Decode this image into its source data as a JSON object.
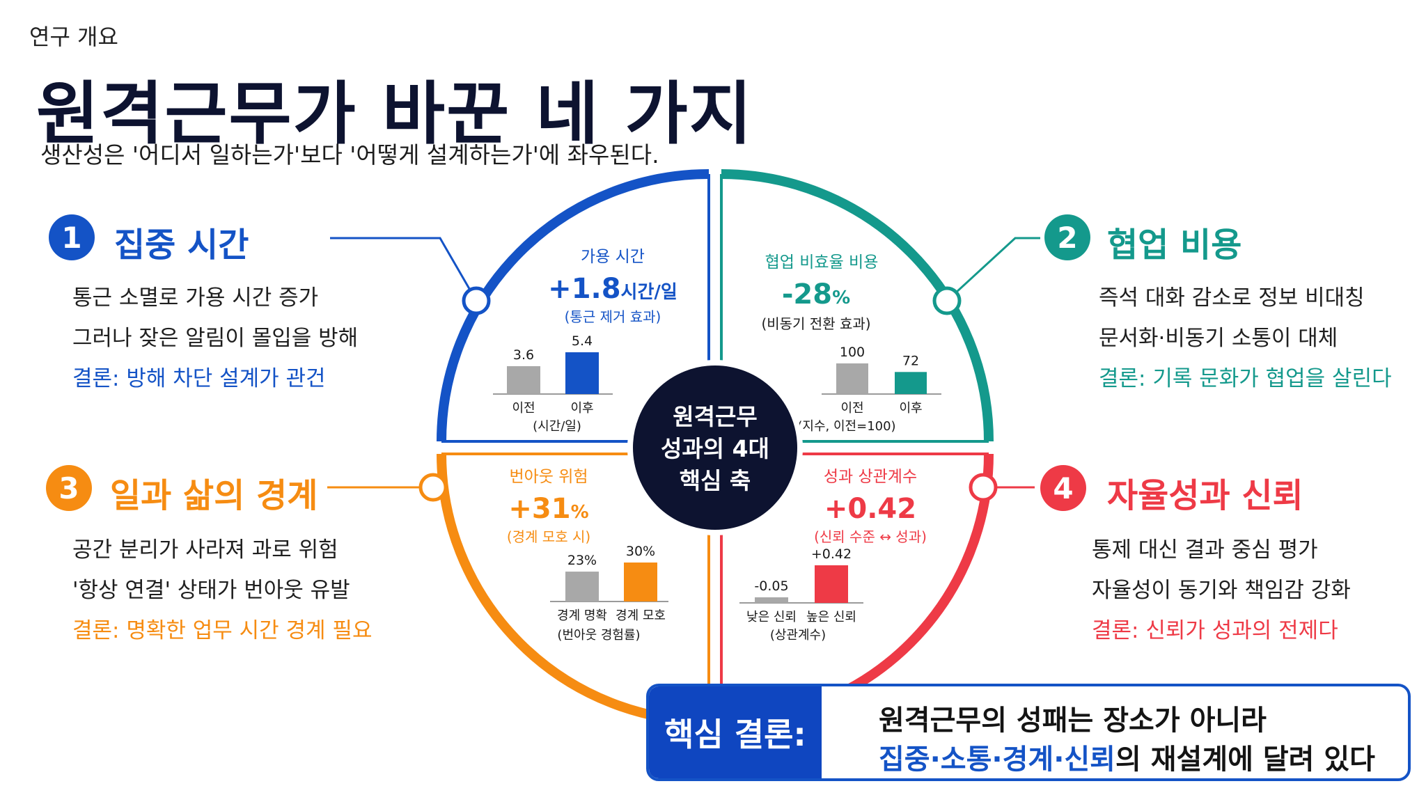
{
  "header": {
    "eyebrow": "연구 개요",
    "title": "원격근무가 바꾼 네 가지",
    "subtitle": "생산성은 '어디서 일하는가'보다 '어떻게 설계하는가'에 좌우된다."
  },
  "colors": {
    "blue": "#1453c6",
    "teal": "#14998c",
    "orange": "#f68c12",
    "red": "#ee3a46",
    "navy": "#0d1330",
    "gray_bar": "#a8a8a8"
  },
  "center": {
    "line1": "원격근무",
    "line2": "성과의 4대",
    "line3": "핵심 축"
  },
  "sections": [
    {
      "number": "1",
      "title": "집중 시간",
      "lines": [
        "통근 소멸로 가용 시간 증가",
        "그러나 잦은 알림이 몰입을 방해"
      ],
      "conclusion": "결론: 방해 차단 설계가 관건",
      "metric_label": "가용 시간",
      "metric_value": "+1.8",
      "metric_unit": "시간/일",
      "metric_note": "(통근 제거 효과)",
      "chart_caption": "(시간/일)"
    },
    {
      "number": "2",
      "title": "협업 비용",
      "lines": [
        "즉석 대화 감소로 정보 비대칭",
        "문서화·비동기 소통이 대체"
      ],
      "conclusion": "결론: 기록 문화가 협업을 살린다",
      "metric_label": "협업 비효율 비용",
      "metric_value": "-28",
      "metric_unit": "%",
      "metric_note": "(비동기 전환 효과)",
      "chart_caption": "(지수, 이전=100)"
    },
    {
      "number": "3",
      "title": "일과 삶의 경계",
      "lines": [
        "공간 분리가 사라져 과로 위험",
        "'항상 연결' 상태가 번아웃 유발"
      ],
      "conclusion": "결론: 명확한 업무 시간 경계 필요",
      "metric_label": "번아웃 위험",
      "metric_value": "+31",
      "metric_unit": "%",
      "metric_note": "(경계 모호 시)",
      "chart_caption": "(번아웃 경험률)"
    },
    {
      "number": "4",
      "title": "자율성과 신뢰",
      "lines": [
        "통제 대신 결과 중심 평가",
        "자율성이 동기와 책임감 강화"
      ],
      "conclusion": "결론: 신뢰가 성과의 전제다",
      "metric_label": "성과 상관계수",
      "metric_value": "+0.42",
      "metric_unit": "",
      "metric_note": "(신뢰 수준 ↔ 성과)",
      "chart_caption": "(상관계수)"
    }
  ],
  "chart_data": [
    {
      "type": "bar",
      "categories": [
        "이전",
        "이후"
      ],
      "values": [
        3.6,
        5.4
      ],
      "value_labels": [
        "3.6",
        "5.4"
      ],
      "ylim": [
        0,
        5.4
      ]
    },
    {
      "type": "bar",
      "categories": [
        "이전",
        "이후"
      ],
      "values": [
        100,
        72
      ],
      "value_labels": [
        "100",
        "72"
      ],
      "ylim": [
        0,
        100
      ]
    },
    {
      "type": "bar",
      "categories": [
        "경계 명확",
        "경계 모호"
      ],
      "values": [
        23,
        30
      ],
      "value_labels": [
        "23%",
        "30%"
      ],
      "ylim": [
        0,
        30
      ]
    },
    {
      "type": "bar",
      "categories": [
        "낮은 신뢰",
        "높은 신뢰"
      ],
      "values": [
        -0.05,
        0.42
      ],
      "value_labels": [
        "-0.05",
        "+0.42"
      ],
      "ylim": [
        0,
        0.42
      ]
    }
  ],
  "banner": {
    "label": "핵심 결론:",
    "line1": "원격근무의 성패는 장소가 아니라",
    "line2_highlight": "집중·소통·경계·신뢰",
    "line2_rest": "의 재설계에 달려 있다"
  }
}
